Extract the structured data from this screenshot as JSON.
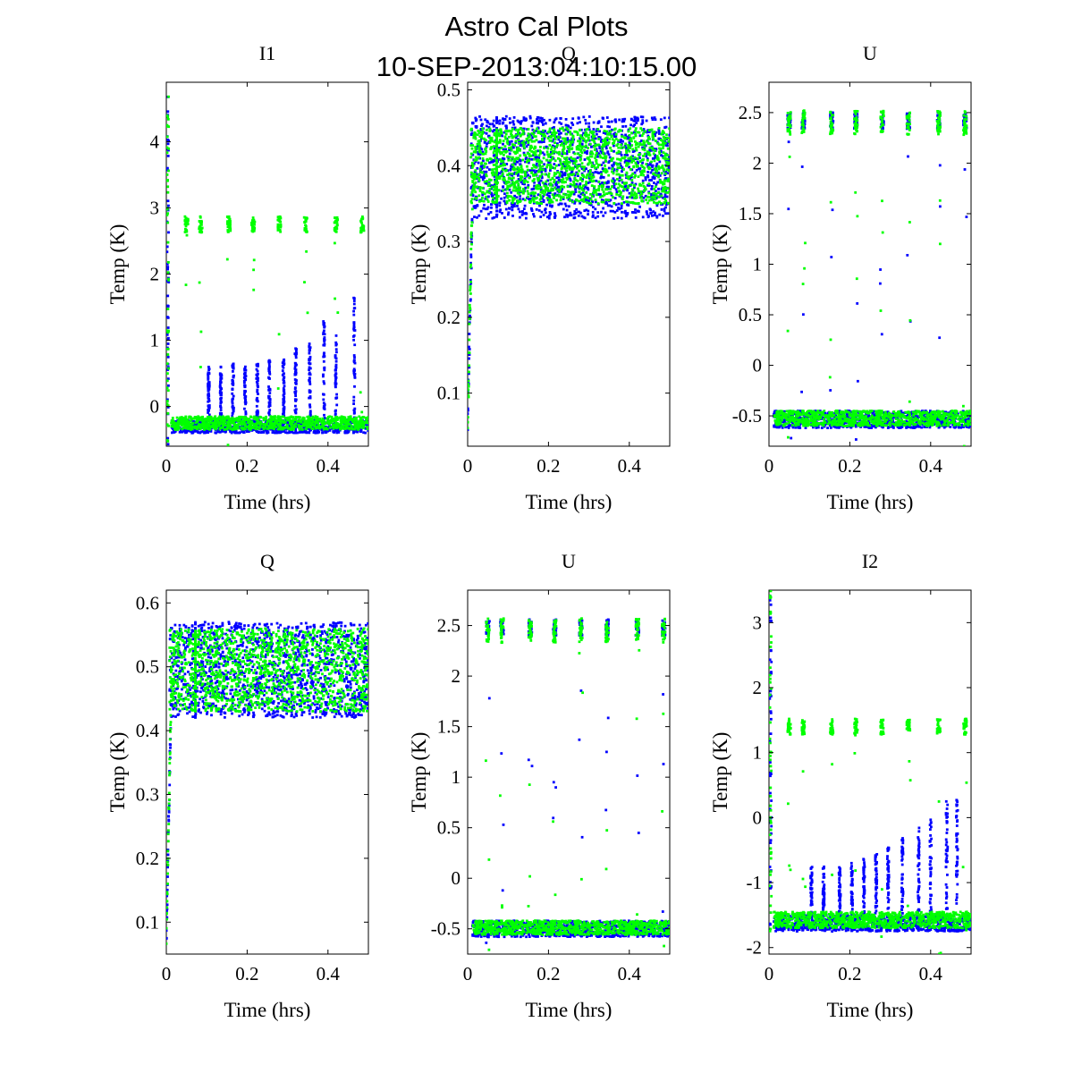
{
  "figure": {
    "title_line1": "Astro Cal Plots",
    "title_line2": "10-SEP-2013:04:10:15.00",
    "colors": {
      "series_blue": "#0000ff",
      "series_green": "#00ff00",
      "axes": "#000000",
      "background": "#ffffff"
    }
  },
  "chart_data": [
    {
      "id": "I1",
      "type": "scatter",
      "title": "I1",
      "xlabel": "Time (hrs)",
      "ylabel": "Temp (K)",
      "xlim": [
        0,
        0.5
      ],
      "ylim": [
        -0.6,
        4.9
      ],
      "xticks": [
        0,
        0.2,
        0.4
      ],
      "xtick_labels": [
        "0",
        "0.2",
        "0.4"
      ],
      "yticks": [
        0,
        1,
        2,
        3,
        4
      ],
      "ytick_labels": [
        "0",
        "1",
        "2",
        "3",
        "4"
      ],
      "series": [
        {
          "name": "blue",
          "color": "#0000ff",
          "initial_spike": [
            -0.6,
            4.7
          ],
          "baseline": [
            -0.4,
            -0.2
          ],
          "cal_pulses": {
            "times": [
              0.105,
              0.135,
              0.165,
              0.195,
              0.225,
              0.255,
              0.29,
              0.32,
              0.355,
              0.39,
              0.42,
              0.465
            ],
            "peaks": [
              0.6,
              0.6,
              0.65,
              0.6,
              0.65,
              0.7,
              0.8,
              0.9,
              1.0,
              1.3,
              1.1,
              1.65
            ]
          }
        },
        {
          "name": "green",
          "color": "#00ff00",
          "initial_spike": [
            -0.6,
            4.7
          ],
          "baseline": [
            -0.35,
            -0.15
          ],
          "cal_clusters": {
            "times": [
              0.05,
              0.085,
              0.155,
              0.215,
              0.28,
              0.345,
              0.42,
              0.485
            ],
            "level": 2.75,
            "spread": 0.12
          }
        }
      ]
    },
    {
      "id": "Q-top",
      "type": "scatter",
      "title": "Q",
      "xlabel": "Time (hrs)",
      "ylabel": "Temp (K)",
      "xlim": [
        0,
        0.5
      ],
      "ylim": [
        0.03,
        0.51
      ],
      "xticks": [
        0,
        0.2,
        0.4
      ],
      "xtick_labels": [
        "0",
        "0.2",
        "0.4"
      ],
      "yticks": [
        0.1,
        0.2,
        0.3,
        0.4,
        0.5
      ],
      "ytick_labels": [
        "0.1",
        "0.2",
        "0.3",
        "0.4",
        "0.5"
      ],
      "series": [
        {
          "name": "blue",
          "color": "#0000ff",
          "rise_from": 0.04,
          "band": [
            0.33,
            0.465
          ]
        },
        {
          "name": "green",
          "color": "#00ff00",
          "rise_from": 0.04,
          "band": [
            0.35,
            0.45
          ]
        }
      ]
    },
    {
      "id": "U-top",
      "type": "scatter",
      "title": "U",
      "xlabel": "Time (hrs)",
      "ylabel": "Temp (K)",
      "xlim": [
        0,
        0.5
      ],
      "ylim": [
        -0.8,
        2.8
      ],
      "xticks": [
        0,
        0.2,
        0.4
      ],
      "xtick_labels": [
        "0",
        "0.2",
        "0.4"
      ],
      "yticks": [
        -0.5,
        0,
        0.5,
        1,
        1.5,
        2,
        2.5
      ],
      "ytick_labels": [
        "-0.5",
        "0",
        "0.5",
        "1",
        "1.5",
        "2",
        "2.5"
      ],
      "series": [
        {
          "name": "blue",
          "color": "#0000ff",
          "baseline": [
            -0.62,
            -0.45
          ],
          "cal_clusters": {
            "times": [
              0.05,
              0.085,
              0.155,
              0.215,
              0.28,
              0.345,
              0.42,
              0.485
            ],
            "level": 2.42,
            "spread": 0.08
          }
        },
        {
          "name": "green",
          "color": "#00ff00",
          "baseline": [
            -0.6,
            -0.45
          ],
          "cal_clusters": {
            "times": [
              0.05,
              0.085,
              0.155,
              0.215,
              0.28,
              0.345,
              0.42,
              0.485
            ],
            "level": 2.4,
            "spread": 0.12
          }
        }
      ]
    },
    {
      "id": "Q-bottom",
      "type": "scatter",
      "title": "Q",
      "xlabel": "Time (hrs)",
      "ylabel": "Temp (K)",
      "xlim": [
        0,
        0.5
      ],
      "ylim": [
        0.05,
        0.62
      ],
      "xticks": [
        0,
        0.2,
        0.4
      ],
      "xtick_labels": [
        "0",
        "0.2",
        "0.4"
      ],
      "yticks": [
        0.1,
        0.2,
        0.3,
        0.4,
        0.5,
        0.6
      ],
      "ytick_labels": [
        "0.1",
        "0.2",
        "0.3",
        "0.4",
        "0.5",
        "0.6"
      ],
      "series": [
        {
          "name": "blue",
          "color": "#0000ff",
          "rise_from": 0.06,
          "band": [
            0.42,
            0.57
          ]
        },
        {
          "name": "green",
          "color": "#00ff00",
          "rise_from": 0.06,
          "band": [
            0.43,
            0.56
          ]
        }
      ]
    },
    {
      "id": "U-bottom",
      "type": "scatter",
      "title": "U",
      "xlabel": "Time (hrs)",
      "ylabel": "Temp (K)",
      "xlim": [
        0,
        0.5
      ],
      "ylim": [
        -0.75,
        2.85
      ],
      "xticks": [
        0,
        0.2,
        0.4
      ],
      "xtick_labels": [
        "0",
        "0.2",
        "0.4"
      ],
      "yticks": [
        -0.5,
        0,
        0.5,
        1,
        1.5,
        2,
        2.5
      ],
      "ytick_labels": [
        "-0.5",
        "0",
        "0.5",
        "1",
        "1.5",
        "2",
        "2.5"
      ],
      "series": [
        {
          "name": "blue",
          "color": "#0000ff",
          "baseline": [
            -0.58,
            -0.42
          ],
          "cal_clusters": {
            "times": [
              0.05,
              0.085,
              0.155,
              0.215,
              0.28,
              0.345,
              0.42,
              0.485
            ],
            "level": 2.48,
            "spread": 0.08
          }
        },
        {
          "name": "green",
          "color": "#00ff00",
          "baseline": [
            -0.56,
            -0.42
          ],
          "cal_clusters": {
            "times": [
              0.05,
              0.085,
              0.155,
              0.215,
              0.28,
              0.345,
              0.42,
              0.485
            ],
            "level": 2.45,
            "spread": 0.12
          }
        }
      ]
    },
    {
      "id": "I2",
      "type": "scatter",
      "title": "I2",
      "xlabel": "Time (hrs)",
      "ylabel": "Temp (K)",
      "xlim": [
        0,
        0.5
      ],
      "ylim": [
        -2.1,
        3.5
      ],
      "xticks": [
        0,
        0.2,
        0.4
      ],
      "xtick_labels": [
        "0",
        "0.2",
        "0.4"
      ],
      "yticks": [
        -2,
        -1,
        0,
        1,
        2,
        3
      ],
      "ytick_labels": [
        "-2",
        "-1",
        "0",
        "1",
        "2",
        "3"
      ],
      "series": [
        {
          "name": "blue",
          "color": "#0000ff",
          "initial_spike": [
            -1.8,
            3.5
          ],
          "baseline": [
            -1.75,
            -1.5
          ],
          "cal_pulses": {
            "times": [
              0.105,
              0.135,
              0.175,
              0.205,
              0.235,
              0.265,
              0.295,
              0.33,
              0.37,
              0.4,
              0.44,
              0.465
            ],
            "peaks": [
              -0.75,
              -0.75,
              -0.75,
              -0.7,
              -0.6,
              -0.55,
              -0.45,
              -0.3,
              -0.15,
              0.0,
              0.25,
              0.3
            ]
          }
        },
        {
          "name": "green",
          "color": "#00ff00",
          "initial_spike": [
            -1.8,
            3.5
          ],
          "baseline": [
            -1.7,
            -1.45
          ],
          "cal_clusters": {
            "times": [
              0.05,
              0.085,
              0.155,
              0.215,
              0.28,
              0.345,
              0.42,
              0.485
            ],
            "level": 1.4,
            "spread": 0.12
          }
        }
      ]
    }
  ]
}
